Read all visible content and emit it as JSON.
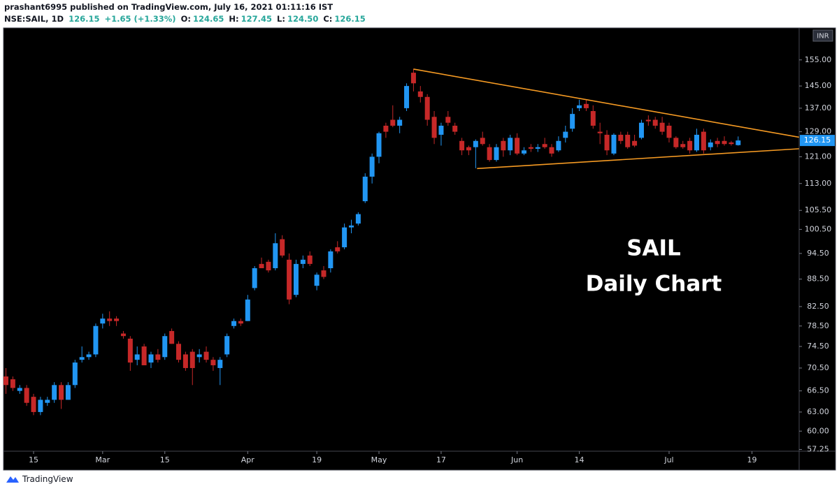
{
  "header": {
    "publisher": "prashant6995 published on TradingView.com, July 16, 2021 01:11:16 IST",
    "symbol": "NSE:SAIL, 1D",
    "price": "126.15",
    "change": "+1.65 (+1.33%)",
    "open_label": "O:",
    "open": "124.65",
    "high_label": "H:",
    "high": "127.45",
    "low_label": "L:",
    "low": "124.50",
    "close_label": "C:",
    "close": "126.15"
  },
  "footer": "TradingView",
  "chart_data": {
    "type": "candlestick",
    "log_scale": true,
    "grid": false,
    "background": "#000000",
    "up_color": "#2196f3",
    "down_color": "#c62828",
    "price_scale_unit": "INR",
    "annotations": [
      "SAIL",
      "Daily Chart"
    ],
    "trendlines": [
      {
        "color": "#f59a23",
        "x": [
          59,
          114.8
        ],
        "y": [
          151.4,
          127.2
        ]
      },
      {
        "color": "#f59a23",
        "x": [
          68.2,
          114.8
        ],
        "y": [
          117.4,
          123.5
        ]
      }
    ],
    "ylim": [
      57.1,
      168.2
    ],
    "yticks": [
      {
        "value": 155,
        "label": "155.00"
      },
      {
        "value": 145,
        "label": "145.00"
      },
      {
        "value": 137,
        "label": "137.00"
      },
      {
        "value": 129,
        "label": "129.00"
      },
      {
        "value": 121,
        "label": "121.00"
      },
      {
        "value": 113,
        "label": "113.00"
      },
      {
        "value": 105.5,
        "label": "105.50"
      },
      {
        "value": 100.5,
        "label": "100.50"
      },
      {
        "value": 94.5,
        "label": "94.50"
      },
      {
        "value": 88.5,
        "label": "88.50"
      },
      {
        "value": 82.5,
        "label": "82.50"
      },
      {
        "value": 78.5,
        "label": "78.50"
      },
      {
        "value": 74.5,
        "label": "74.50"
      },
      {
        "value": 70.5,
        "label": "70.50"
      },
      {
        "value": 66.5,
        "label": "66.50"
      },
      {
        "value": 63,
        "label": "63.00"
      },
      {
        "value": 60,
        "label": "60.00"
      },
      {
        "value": 57.25,
        "label": "57.25"
      }
    ],
    "categories": [
      null,
      null,
      null,
      null,
      "15",
      null,
      null,
      null,
      null,
      null,
      null,
      null,
      null,
      null,
      "Mar",
      null,
      null,
      null,
      null,
      null,
      null,
      null,
      null,
      "15",
      null,
      null,
      null,
      null,
      null,
      null,
      null,
      null,
      null,
      null,
      null,
      "Apr",
      null,
      null,
      null,
      null,
      null,
      null,
      null,
      null,
      null,
      "19",
      null,
      null,
      null,
      null,
      null,
      null,
      null,
      null,
      "May",
      null,
      null,
      null,
      null,
      null,
      null,
      null,
      null,
      "17",
      null,
      null,
      null,
      null,
      null,
      null,
      null,
      null,
      null,
      null,
      "Jun",
      null,
      null,
      null,
      null,
      null,
      null,
      null,
      null,
      "14",
      null,
      null,
      null,
      null,
      null,
      null,
      null,
      null,
      null,
      null,
      null,
      null,
      "Jul",
      null,
      null,
      null,
      null,
      null,
      null,
      null,
      null,
      null,
      null,
      null,
      "19",
      null,
      null,
      null,
      null,
      null,
      null
    ],
    "open": [
      69,
      68.5,
      66.5,
      67,
      65.5,
      63,
      64.5,
      65,
      67.5,
      65,
      67.5,
      72,
      72.5,
      73,
      79,
      80,
      80,
      77,
      76,
      72,
      74.5,
      71.5,
      73,
      72.5,
      77.5,
      75,
      73,
      73.5,
      72.5,
      73.5,
      72,
      70.5,
      73,
      78.5,
      79.5,
      79.5,
      86.5,
      92,
      92.5,
      91,
      98,
      93,
      85,
      92,
      94,
      87,
      90.5,
      91,
      96,
      96,
      101,
      102,
      108,
      115,
      121,
      131,
      133,
      131,
      137,
      150,
      143,
      141,
      134,
      128,
      134,
      131,
      126,
      124,
      124,
      127,
      124,
      120,
      126,
      123,
      127,
      122,
      124,
      123.5,
      125,
      124,
      123,
      127,
      130,
      137,
      138.5,
      136,
      129,
      128,
      122,
      128,
      128,
      126,
      127,
      133,
      133,
      132,
      131,
      127,
      125,
      126,
      123,
      129,
      124,
      126,
      126,
      125.5,
      124.65,
      null,
      null,
      null,
      null,
      null,
      null,
      null,
      null
    ],
    "high": [
      70.5,
      69,
      67.5,
      67.5,
      66,
      65.5,
      65.5,
      68,
      68,
      68,
      72,
      74.5,
      73.5,
      79,
      81,
      81.5,
      80.5,
      77.5,
      76.5,
      74.5,
      75,
      73.5,
      74,
      77,
      78,
      75.5,
      73.5,
      74,
      74,
      74.5,
      72.5,
      72.5,
      77,
      80,
      80,
      85,
      91.5,
      93.5,
      93,
      99.5,
      99,
      94.5,
      93,
      94,
      95,
      90,
      91.5,
      95.5,
      97.5,
      102,
      103,
      105,
      116,
      122,
      129,
      132,
      138,
      134,
      146,
      151.5,
      145,
      142,
      136,
      132,
      136,
      132,
      127,
      124.5,
      126.5,
      129,
      125,
      125,
      127,
      128,
      128.5,
      124,
      125,
      125,
      127,
      125,
      127.5,
      131,
      137,
      140,
      140,
      138,
      132,
      129.5,
      128.5,
      129,
      129,
      128,
      133,
      134.5,
      134,
      134,
      132,
      127.5,
      126,
      127,
      130,
      130,
      126.5,
      127,
      127.5,
      126,
      127.45,
      null,
      null,
      null,
      null,
      null,
      null,
      null,
      null
    ],
    "low": [
      66,
      66.5,
      66,
      64,
      62.5,
      62.5,
      64,
      64.5,
      63.5,
      65,
      67,
      71.5,
      72,
      72.5,
      78,
      78.5,
      78.5,
      76,
      70,
      71,
      71,
      70.5,
      71.5,
      72,
      75,
      71.5,
      70,
      67.5,
      71.5,
      71.5,
      70,
      67.5,
      72.5,
      78,
      78.5,
      79.5,
      86,
      91,
      90,
      90.5,
      93.5,
      83,
      84.5,
      91,
      91.5,
      86,
      88.5,
      90,
      94.5,
      95.5,
      99.5,
      101.5,
      107.5,
      113,
      119,
      127,
      130.5,
      128.5,
      136,
      143,
      139,
      131,
      125,
      124.5,
      131,
      128,
      121.5,
      121.5,
      117.5,
      124.5,
      119.5,
      119.5,
      121,
      121.5,
      121.5,
      121.5,
      122.5,
      122.5,
      123.5,
      121,
      122.5,
      125.5,
      129,
      136,
      136,
      130,
      125,
      121.5,
      121.5,
      125,
      123.5,
      124,
      126.5,
      131,
      130,
      128,
      125.5,
      123.5,
      123.5,
      122,
      122.5,
      122,
      123,
      124,
      124.5,
      124.5,
      124.5,
      null,
      null,
      null,
      null,
      null,
      null,
      null,
      null
    ],
    "close": [
      67.5,
      67,
      67,
      64.5,
      63,
      65,
      65,
      67.5,
      65,
      67.5,
      71.5,
      72.5,
      73,
      78.5,
      80,
      79.5,
      79.5,
      76.5,
      71.5,
      73,
      71,
      73,
      72,
      76.5,
      75,
      72,
      70.5,
      70.5,
      73,
      72,
      71,
      72,
      76.5,
      79.5,
      79,
      84,
      91,
      91,
      90.5,
      97,
      94,
      84,
      92,
      93,
      92,
      89.5,
      89,
      95,
      95,
      101,
      101.5,
      104.5,
      115,
      121,
      128.5,
      129,
      131,
      133,
      145,
      146,
      141,
      133,
      127,
      131,
      132,
      129,
      123,
      123,
      126,
      125,
      120,
      124,
      123,
      127,
      122,
      123,
      123.5,
      124,
      124,
      122,
      126,
      129,
      135,
      138,
      137,
      131,
      128.5,
      123,
      128,
      126,
      124,
      124.5,
      132,
      132.5,
      131,
      129,
      127,
      124,
      124,
      123,
      128,
      123,
      125.5,
      125,
      125,
      125,
      126.15,
      null,
      null,
      null,
      null,
      null,
      null,
      null,
      null
    ]
  }
}
